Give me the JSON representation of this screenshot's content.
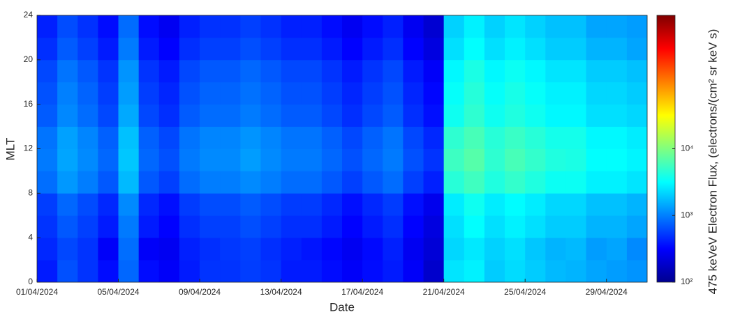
{
  "chart_data": {
    "type": "heatmap",
    "x_label": "Date",
    "y_label": "MLT",
    "colorbar_label": "475 keVeV Electron Flux, (electrons/(cm² sr keV s)",
    "colormap": "jet",
    "color_log_scale": true,
    "xlim": [
      "2024-04-01",
      "2024-05-01"
    ],
    "xticks": [
      {
        "value": "2024-04-01",
        "label": "01/04/2024"
      },
      {
        "value": "2024-04-05",
        "label": "05/04/2024"
      },
      {
        "value": "2024-04-09",
        "label": "09/04/2024"
      },
      {
        "value": "2024-04-13",
        "label": "13/04/2024"
      },
      {
        "value": "2024-04-17",
        "label": "17/04/2024"
      },
      {
        "value": "2024-04-21",
        "label": "21/04/2024"
      },
      {
        "value": "2024-04-25",
        "label": "25/04/2024"
      },
      {
        "value": "2024-04-29",
        "label": "29/04/2024"
      }
    ],
    "ylim": [
      0,
      24
    ],
    "yticks": [
      0,
      4,
      8,
      12,
      16,
      20,
      24
    ],
    "clim": [
      100,
      1000000
    ],
    "cticks": [
      {
        "value": 100,
        "label": "10²"
      },
      {
        "value": 1000,
        "label": "10³"
      },
      {
        "value": 10000,
        "label": "10⁴"
      }
    ],
    "x": [
      "2024-04-01",
      "2024-04-02",
      "2024-04-03",
      "2024-04-04",
      "2024-04-05",
      "2024-04-06",
      "2024-04-07",
      "2024-04-08",
      "2024-04-09",
      "2024-04-10",
      "2024-04-11",
      "2024-04-12",
      "2024-04-13",
      "2024-04-14",
      "2024-04-15",
      "2024-04-16",
      "2024-04-17",
      "2024-04-18",
      "2024-04-19",
      "2024-04-20",
      "2024-04-21",
      "2024-04-22",
      "2024-04-23",
      "2024-04-24",
      "2024-04-25",
      "2024-04-26",
      "2024-04-27",
      "2024-04-28",
      "2024-04-29",
      "2024-04-30"
    ],
    "y_edges": [
      0,
      2,
      4,
      6,
      8,
      10,
      12,
      14,
      16,
      18,
      20,
      22,
      24
    ],
    "z": [
      [
        400,
        650,
        500,
        350,
        800,
        350,
        300,
        400,
        500,
        500,
        550,
        500,
        400,
        400,
        350,
        300,
        350,
        400,
        300,
        200,
        2500,
        2800,
        2000,
        2300,
        2000,
        1700,
        1600,
        1400,
        1300,
        1200
      ],
      [
        450,
        600,
        500,
        300,
        850,
        300,
        280,
        420,
        480,
        520,
        560,
        480,
        420,
        380,
        330,
        280,
        340,
        420,
        280,
        220,
        2200,
        2600,
        2100,
        2400,
        1900,
        1600,
        1700,
        1300,
        1400,
        1100
      ],
      [
        500,
        700,
        560,
        400,
        950,
        400,
        320,
        480,
        560,
        560,
        640,
        560,
        480,
        480,
        400,
        320,
        400,
        480,
        320,
        240,
        2400,
        3200,
        2400,
        2800,
        2400,
        2000,
        2000,
        1600,
        1600,
        1400
      ],
      [
        550,
        800,
        620,
        450,
        1100,
        450,
        360,
        540,
        630,
        630,
        720,
        630,
        540,
        540,
        450,
        360,
        450,
        540,
        360,
        270,
        2700,
        3600,
        2700,
        3100,
        2700,
        2200,
        2200,
        1800,
        1800,
        1600
      ],
      [
        850,
        1250,
        980,
        700,
        1700,
        700,
        560,
        840,
        980,
        980,
        1100,
        980,
        840,
        840,
        700,
        560,
        700,
        840,
        560,
        420,
        4500,
        5600,
        4200,
        5000,
        4200,
        3500,
        3500,
        2800,
        2800,
        2500
      ],
      [
        950,
        1400,
        1100,
        800,
        1900,
        800,
        650,
        950,
        1100,
        1100,
        1300,
        1100,
        950,
        950,
        800,
        650,
        800,
        950,
        650,
        500,
        5500,
        6800,
        4800,
        6000,
        5000,
        4200,
        4000,
        3200,
        3200,
        2900
      ],
      [
        900,
        1350,
        1050,
        750,
        1800,
        750,
        600,
        900,
        1050,
        1050,
        1200,
        1050,
        900,
        900,
        750,
        600,
        750,
        900,
        600,
        450,
        4800,
        6000,
        4500,
        5300,
        4500,
        3800,
        3800,
        3000,
        3000,
        2700
      ],
      [
        720,
        1080,
        840,
        600,
        1450,
        600,
        480,
        720,
        840,
        840,
        960,
        840,
        720,
        720,
        600,
        480,
        600,
        720,
        480,
        360,
        3600,
        4800,
        3600,
        4200,
        3600,
        3000,
        3000,
        2400,
        2400,
        2200
      ],
      [
        660,
        1000,
        770,
        550,
        1300,
        550,
        440,
        660,
        770,
        770,
        880,
        770,
        660,
        660,
        550,
        440,
        550,
        660,
        440,
        330,
        3300,
        4400,
        3300,
        3900,
        3300,
        2800,
        2800,
        2200,
        2200,
        2000
      ],
      [
        600,
        900,
        700,
        500,
        1200,
        500,
        400,
        600,
        700,
        700,
        800,
        700,
        600,
        600,
        500,
        400,
        500,
        600,
        400,
        300,
        3000,
        4000,
        3000,
        3500,
        3000,
        2500,
        2500,
        2000,
        2000,
        1800
      ],
      [
        480,
        720,
        560,
        400,
        960,
        400,
        320,
        480,
        560,
        560,
        640,
        560,
        480,
        480,
        400,
        320,
        400,
        480,
        320,
        240,
        2400,
        3200,
        2400,
        2800,
        2400,
        2000,
        2000,
        1600,
        1600,
        1400
      ],
      [
        420,
        630,
        490,
        350,
        840,
        350,
        280,
        420,
        490,
        490,
        560,
        490,
        420,
        420,
        350,
        280,
        350,
        420,
        280,
        210,
        2100,
        2800,
        2100,
        2500,
        2100,
        1800,
        1800,
        1400,
        1400,
        1300
      ]
    ]
  }
}
